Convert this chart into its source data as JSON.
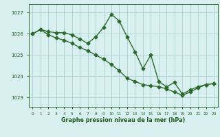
{
  "line1_x": [
    0,
    1,
    2,
    3,
    4,
    5,
    6,
    7,
    8,
    9,
    10,
    11,
    12,
    13,
    14,
    15,
    16,
    17,
    18,
    19,
    20,
    21,
    22,
    23
  ],
  "line1_y": [
    1026.0,
    1026.2,
    1026.1,
    1026.05,
    1026.05,
    1025.95,
    1025.75,
    1025.55,
    1025.85,
    1026.3,
    1026.92,
    1026.6,
    1025.85,
    1025.15,
    1024.35,
    1025.0,
    1023.75,
    1023.5,
    1023.7,
    1023.15,
    1023.35,
    1023.5,
    1023.6,
    1023.65
  ],
  "line2_x": [
    0,
    1,
    2,
    3,
    4,
    5,
    6,
    7,
    8,
    9,
    10,
    11,
    12,
    13,
    14,
    15,
    16,
    17,
    18,
    19,
    20,
    21,
    22,
    23
  ],
  "line2_y": [
    1026.0,
    1026.2,
    1025.95,
    1025.8,
    1025.7,
    1025.55,
    1025.35,
    1025.2,
    1025.0,
    1024.8,
    1024.55,
    1024.25,
    1023.9,
    1023.75,
    1023.6,
    1023.55,
    1023.5,
    1023.4,
    1023.25,
    1023.1,
    1023.25,
    1023.45,
    1023.6,
    1023.65
  ],
  "line_color": "#2d6a2d",
  "marker": "D",
  "markersize": 2.5,
  "linewidth": 1.0,
  "bg_color": "#d8f0f0",
  "grid_color": "#aacfcf",
  "xlabel": "Graphe pression niveau de la mer (hPa)",
  "xlabel_color": "#1a5c1a",
  "tick_color": "#1a5c1a",
  "yticks": [
    1023,
    1024,
    1025,
    1026,
    1027
  ],
  "xticks": [
    0,
    1,
    2,
    3,
    4,
    5,
    6,
    7,
    8,
    9,
    10,
    11,
    12,
    13,
    14,
    15,
    16,
    17,
    18,
    19,
    20,
    21,
    22,
    23
  ],
  "ylim": [
    1022.55,
    1027.4
  ],
  "xlim": [
    -0.5,
    23.5
  ]
}
